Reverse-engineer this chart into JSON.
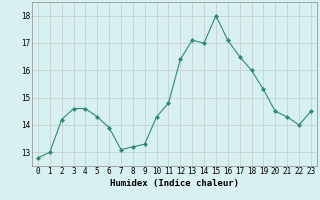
{
  "x": [
    0,
    1,
    2,
    3,
    4,
    5,
    6,
    7,
    8,
    9,
    10,
    11,
    12,
    13,
    14,
    15,
    16,
    17,
    18,
    19,
    20,
    21,
    22,
    23
  ],
  "y": [
    12.8,
    13.0,
    14.2,
    14.6,
    14.6,
    14.3,
    13.9,
    13.1,
    13.2,
    13.3,
    14.3,
    14.8,
    16.4,
    17.1,
    17.0,
    18.0,
    17.1,
    16.5,
    16.0,
    15.3,
    14.5,
    14.3,
    14.0,
    14.5
  ],
  "line_color": "#2e8b74",
  "marker": "D",
  "marker_size": 2,
  "bg_color": "#d7f0f0",
  "grid_color": "#c0c0c0",
  "xlabel": "Humidex (Indice chaleur)",
  "ylim": [
    12.5,
    18.5
  ],
  "yticks": [
    13,
    14,
    15,
    16,
    17,
    18
  ],
  "xticks": [
    0,
    1,
    2,
    3,
    4,
    5,
    6,
    7,
    8,
    9,
    10,
    11,
    12,
    13,
    14,
    15,
    16,
    17,
    18,
    19,
    20,
    21,
    22,
    23
  ],
  "xlabel_fontsize": 6.5,
  "tick_fontsize": 5.5
}
